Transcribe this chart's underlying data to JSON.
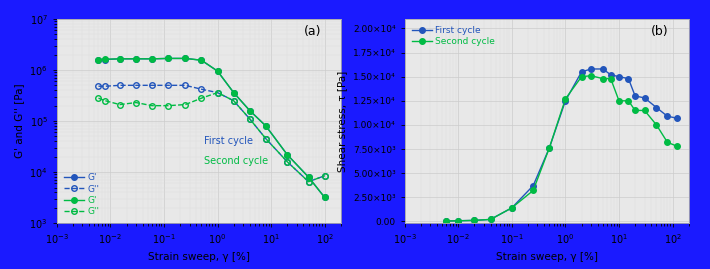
{
  "panel_a": {
    "title": "(a)",
    "xlabel": "Strain sweep, γ [%]",
    "ylabel": "G' and G'' [Pa]",
    "xlim": [
      0.001,
      200
    ],
    "ylim": [
      1000.0,
      10000000.0
    ],
    "first_cycle_Gp": {
      "x": [
        0.006,
        0.008,
        0.015,
        0.03,
        0.06,
        0.12,
        0.25,
        0.5,
        1.0,
        2.0,
        4.0,
        8.0,
        20.0,
        50.0,
        100.0
      ],
      "y": [
        1600000.0,
        1600000.0,
        1650000.0,
        1650000.0,
        1650000.0,
        1680000.0,
        1680000.0,
        1550000.0,
        950000.0,
        360000.0,
        160000.0,
        80000.0,
        22000.0,
        8000.0,
        3200.0
      ],
      "color": "#2255bb",
      "marker": "o",
      "markersize": 4,
      "linestyle": "-"
    },
    "first_cycle_Gpp": {
      "x": [
        0.006,
        0.008,
        0.015,
        0.03,
        0.06,
        0.12,
        0.25,
        0.5,
        1.0,
        2.0,
        4.0,
        8.0,
        20.0,
        50.0,
        100.0
      ],
      "y": [
        480000.0,
        480000.0,
        500000.0,
        500000.0,
        500000.0,
        500000.0,
        500000.0,
        420000.0,
        360000.0,
        250000.0,
        110000.0,
        45000.0,
        16000.0,
        6500.0,
        8500.0
      ],
      "color": "#2255bb",
      "marker": "o",
      "markersize": 4,
      "linestyle": "--"
    },
    "second_cycle_Gp": {
      "x": [
        0.006,
        0.008,
        0.015,
        0.03,
        0.06,
        0.12,
        0.25,
        0.5,
        1.0,
        2.0,
        4.0,
        8.0,
        20.0,
        50.0,
        100.0
      ],
      "y": [
        1600000.0,
        1620000.0,
        1650000.0,
        1650000.0,
        1650000.0,
        1680000.0,
        1680000.0,
        1550000.0,
        950000.0,
        360000.0,
        160000.0,
        80000.0,
        22000.0,
        8000.0,
        3200.0
      ],
      "color": "#00bb44",
      "marker": "o",
      "markersize": 4,
      "linestyle": "-"
    },
    "second_cycle_Gpp": {
      "x": [
        0.006,
        0.008,
        0.015,
        0.03,
        0.06,
        0.12,
        0.25,
        0.5,
        1.0,
        2.0,
        4.0,
        8.0,
        20.0,
        50.0,
        100.0
      ],
      "y": [
        280000.0,
        250000.0,
        210000.0,
        230000.0,
        200000.0,
        200000.0,
        210000.0,
        280000.0,
        360000.0,
        250000.0,
        110000.0,
        45000.0,
        16000.0,
        6500.0,
        8500.0
      ],
      "color": "#00bb44",
      "marker": "o",
      "markersize": 4,
      "linestyle": "--"
    },
    "legend_labels": [
      "G'",
      "G''",
      "G'",
      "G''"
    ],
    "first_cycle_label": "First cycle",
    "second_cycle_label": "Second cycle",
    "first_cycle_color": "#2255bb",
    "second_cycle_color": "#00bb44"
  },
  "panel_b": {
    "title": "(b)",
    "xlabel": "Strain sweep, γ [%]",
    "ylabel": "Shear stress, τ [Pa]",
    "xlim": [
      0.001,
      200
    ],
    "ylim": [
      -200,
      21000
    ],
    "yticks": [
      0,
      2500,
      5000,
      7500,
      10000,
      12500,
      15000,
      17500,
      20000
    ],
    "ytick_labels": [
      "0.00",
      "2.50×10³",
      "5.00×10³",
      "7.50×10³",
      "1.00×10⁴",
      "1.25×10⁴",
      "1.50×10⁴",
      "1.75×10⁴",
      "2.00×10⁴"
    ],
    "first_cycle": {
      "x": [
        0.006,
        0.01,
        0.02,
        0.04,
        0.1,
        0.25,
        0.5,
        1.0,
        2.0,
        3.0,
        5.0,
        7.0,
        10.0,
        15.0,
        20.0,
        30.0,
        50.0,
        80.0,
        120.0
      ],
      "y": [
        30,
        60,
        100,
        200,
        1400,
        3700,
        7600,
        12500,
        15500,
        15800,
        15800,
        15200,
        15000,
        14800,
        13000,
        12800,
        11800,
        10900,
        10700
      ],
      "color": "#2255bb",
      "marker": "o",
      "markersize": 4,
      "linestyle": "-"
    },
    "second_cycle": {
      "x": [
        0.006,
        0.01,
        0.02,
        0.04,
        0.1,
        0.25,
        0.5,
        1.0,
        2.0,
        3.0,
        5.0,
        7.0,
        10.0,
        15.0,
        20.0,
        30.0,
        50.0,
        80.0,
        120.0
      ],
      "y": [
        30,
        60,
        100,
        200,
        1400,
        3200,
        7600,
        12700,
        15000,
        15100,
        14800,
        14800,
        12500,
        12500,
        11500,
        11500,
        10000,
        8200,
        7800
      ],
      "color": "#00bb44",
      "marker": "o",
      "markersize": 4,
      "linestyle": "-"
    },
    "first_cycle_label": "First cycle",
    "second_cycle_label": "Second cycle",
    "first_cycle_color": "#2255bb",
    "second_cycle_color": "#00bb44"
  },
  "border_color": "#1a1aff",
  "plot_bg_color": "#e8e8e8",
  "fig_bg_color": "#f5f5f5"
}
